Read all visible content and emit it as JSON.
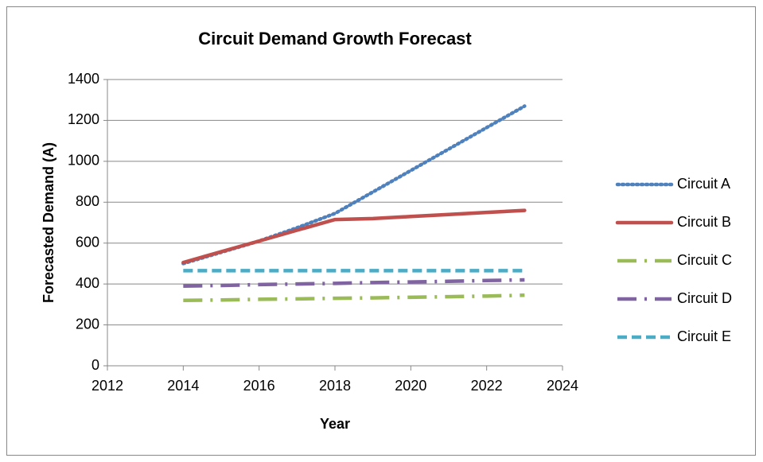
{
  "chart_data": {
    "type": "line",
    "title": "Circuit Demand Growth Forecast",
    "x_label": "Year",
    "y_label": "Forecasted Demand (A)",
    "x": [
      2014,
      2015,
      2016,
      2017,
      2018,
      2019,
      2020,
      2021,
      2022,
      2023
    ],
    "series": [
      {
        "name": "Circuit A",
        "color": "#4f81bd",
        "line_style": "dotted",
        "values": [
          500,
          555,
          610,
          675,
          745,
          850,
          955,
          1060,
          1165,
          1270
        ]
      },
      {
        "name": "Circuit B",
        "color": "#c0504d",
        "line_style": "solid",
        "values": [
          505,
          558,
          610,
          663,
          715,
          720,
          730,
          740,
          750,
          760
        ]
      },
      {
        "name": "Circuit C",
        "color": "#9bbb59",
        "line_style": "long-dash-dot",
        "values": [
          320,
          322,
          325,
          327,
          330,
          332,
          335,
          338,
          341,
          345
        ]
      },
      {
        "name": "Circuit D",
        "color": "#8064a2",
        "line_style": "long-dash-dot",
        "values": [
          390,
          393,
          397,
          400,
          403,
          407,
          410,
          413,
          417,
          420
        ]
      },
      {
        "name": "Circuit E",
        "color": "#4bacc6",
        "line_style": "dashed",
        "values": [
          465,
          465,
          465,
          465,
          465,
          465,
          465,
          465,
          465,
          465
        ]
      }
    ],
    "xlim": [
      2012,
      2024
    ],
    "xticks": [
      2012,
      2014,
      2016,
      2018,
      2020,
      2022,
      2024
    ],
    "ylim": [
      0,
      1400
    ],
    "yticks": [
      0,
      200,
      400,
      600,
      800,
      1000,
      1200,
      1400
    ],
    "grid": true,
    "legend": "right"
  }
}
